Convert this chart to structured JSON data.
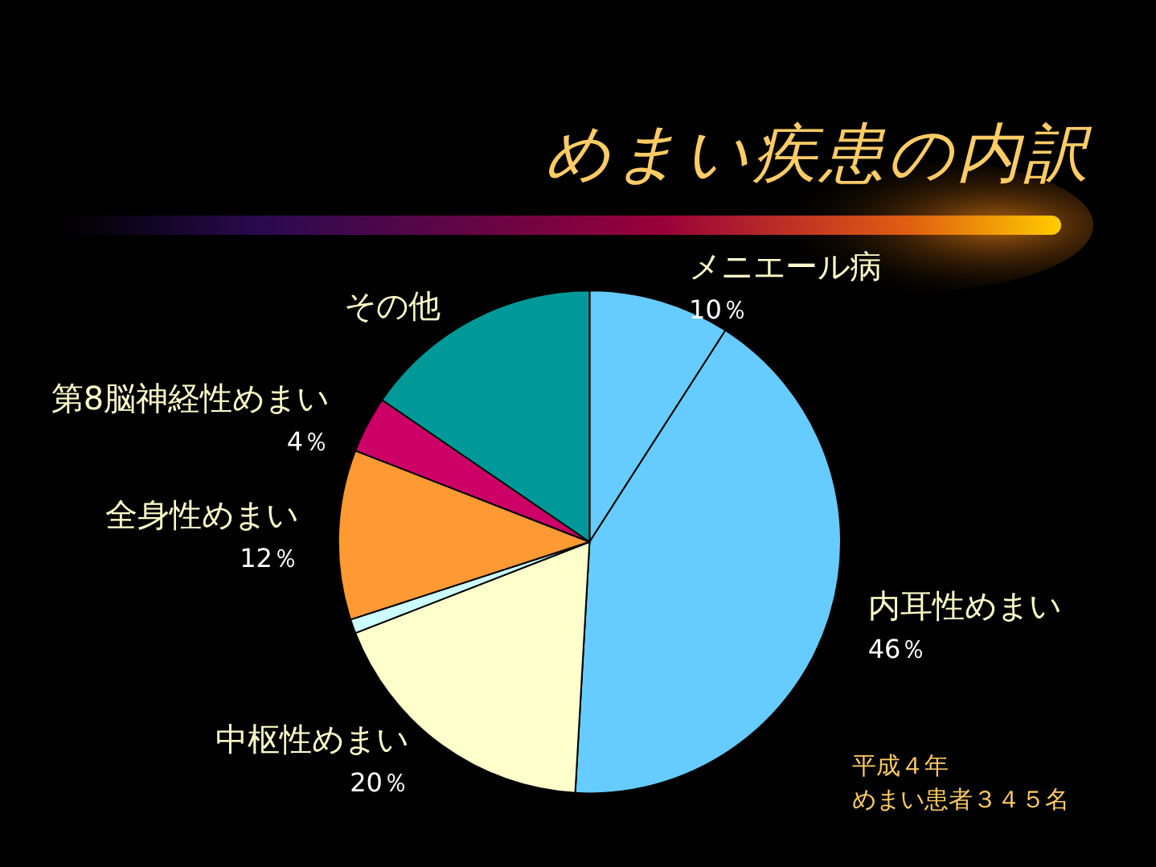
{
  "chart_data": {
    "type": "pie",
    "title": "めまい疾患の内訳",
    "categories": [
      "メニエール病",
      "内耳性めまい",
      "中枢性めまい",
      null,
      "全身性めまい",
      "第8脳神経性めまい",
      "その他"
    ],
    "values": [
      10,
      46,
      20,
      1,
      12,
      4,
      17
    ],
    "value_labels": [
      "10％",
      "46％",
      "20％",
      null,
      "12％",
      "4％",
      null
    ],
    "colors": [
      "#66ccff",
      "#66ccff",
      "#ffffcc",
      "#ccffff",
      "#ff9933",
      "#cc0066",
      "#009999"
    ],
    "annotations": [
      "平成４年",
      "めまい患者３４５名"
    ]
  }
}
